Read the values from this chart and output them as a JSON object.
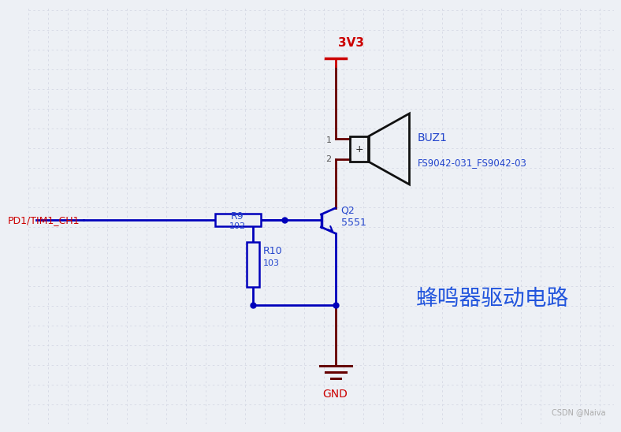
{
  "bg_color": "#edf0f5",
  "grid_color": "#d4d8e4",
  "wire_blue": "#0000bb",
  "wire_dark": "#660000",
  "wire_red": "#cc0000",
  "text_blue": "#2244cc",
  "buzzer_black": "#111111",
  "title_text": "蜂鸣器驱动电路",
  "title_color": "#2255dd",
  "title_fontsize": 20,
  "label_3v3": "3V3",
  "label_gnd": "GND",
  "label_pd1": "PD1/TIM1_CH1",
  "label_r9": "R9",
  "label_r9_val": "102",
  "label_r10": "R10",
  "label_r10_val": "103",
  "label_q2": "Q2",
  "label_q2_val": "5551",
  "label_buz1": "BUZ1",
  "label_buz1_val": "FS9042-031_FS9042-03",
  "label_pin1": "1",
  "label_pin2": "2",
  "watermark": "CSDN @Naiva"
}
